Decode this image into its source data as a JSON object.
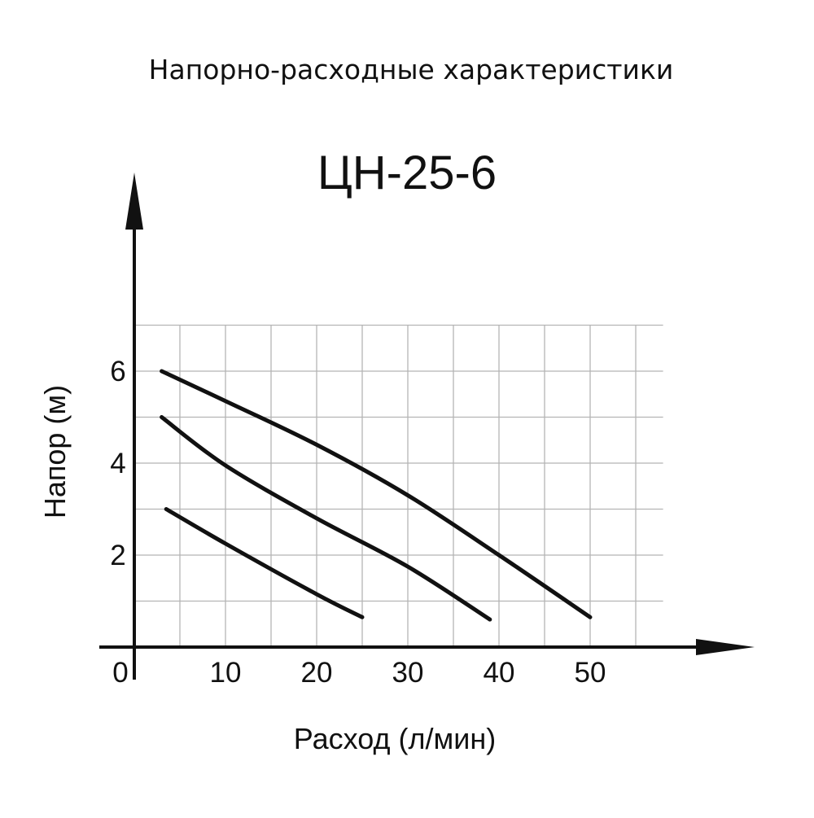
{
  "chart_data": {
    "type": "line",
    "title": "Напорно-расходные характеристики",
    "subtitle": "ЦН-25-6",
    "xlabel": "Расход (л/мин)",
    "ylabel": "Напор (м)",
    "xlim": [
      0,
      58
    ],
    "ylim": [
      0,
      7.4
    ],
    "x_ticks": [
      "0",
      "10",
      "20",
      "30",
      "40",
      "50"
    ],
    "y_ticks": [
      "2",
      "4",
      "6"
    ],
    "grid": true,
    "series": [
      {
        "values": [
          [
            3,
            6.0
          ],
          [
            10,
            5.35
          ],
          [
            20,
            4.4
          ],
          [
            30,
            3.3
          ],
          [
            40,
            2.0
          ],
          [
            50,
            0.65
          ]
        ]
      },
      {
        "values": [
          [
            3,
            5.0
          ],
          [
            10,
            3.95
          ],
          [
            20,
            2.8
          ],
          [
            30,
            1.75
          ],
          [
            39,
            0.6
          ]
        ]
      },
      {
        "values": [
          [
            3.5,
            3.0
          ],
          [
            10,
            2.25
          ],
          [
            20,
            1.15
          ],
          [
            25,
            0.65
          ]
        ]
      }
    ],
    "colors": {
      "line": "#111111",
      "grid": "#b5b5b5",
      "axis": "#111111"
    }
  }
}
